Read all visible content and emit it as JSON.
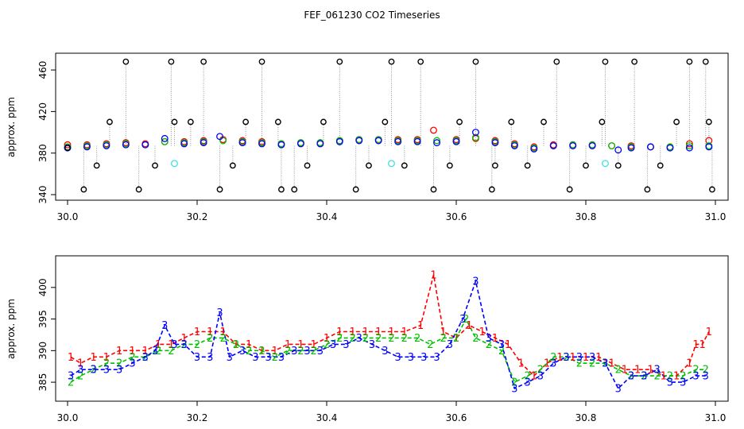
{
  "page": {
    "title": "FEF_061230  CO2 Timeseries"
  },
  "colors": {
    "series1": "#ff0000",
    "series2": "#00c000",
    "series3": "#0000ff",
    "flagged": "#000000",
    "highlight": "#40e0e0",
    "dropline": "#999999"
  },
  "chart_data": [
    {
      "type": "scatter",
      "title": "",
      "xlabel": "",
      "ylabel": "approx. ppm",
      "xlim": [
        30.0,
        31.0
      ],
      "ylim": [
        340,
        470
      ],
      "xticks": [
        "30.0",
        "30.2",
        "30.4",
        "30.6",
        "30.8",
        "31.0"
      ],
      "xtick_values": [
        30.0,
        30.2,
        30.4,
        30.6,
        30.8,
        31.0
      ],
      "yticks": [
        "340",
        "380",
        "420",
        "460"
      ],
      "ytick_values": [
        340,
        380,
        420,
        460
      ],
      "grid": false,
      "notes": "Symbols: open circles. Red/green/blue = samples 1/2/3 of cycle; black circles = flagged outliers (at 345, 368, 410, 468 ppm) with dotted drop lines; cyan = highlighted points.",
      "series": [
        {
          "name": "",
          "color_key": "series1",
          "x": [
            30.0,
            30.03,
            30.06,
            30.09,
            30.12,
            30.15,
            30.18,
            30.21,
            30.24,
            30.27,
            30.3,
            30.33,
            30.36,
            30.39,
            30.42,
            30.45,
            30.48,
            30.51,
            30.54,
            30.565,
            30.6,
            30.63,
            30.66,
            30.69,
            30.72,
            30.75,
            30.78,
            30.81,
            30.84,
            30.87,
            30.9,
            30.93,
            30.96,
            30.99
          ],
          "y": [
            388,
            388,
            389,
            390,
            389,
            391,
            391,
            392,
            393,
            392,
            391,
            389,
            390,
            390,
            392,
            393,
            393,
            393,
            393,
            402,
            393,
            394,
            392,
            389,
            386,
            388,
            388,
            388,
            387,
            387,
            386,
            386,
            389,
            392
          ]
        },
        {
          "name": "",
          "color_key": "series2",
          "x": [
            30.0,
            30.03,
            30.06,
            30.09,
            30.12,
            30.15,
            30.18,
            30.21,
            30.24,
            30.27,
            30.3,
            30.33,
            30.36,
            30.39,
            30.42,
            30.45,
            30.48,
            30.51,
            30.54,
            30.57,
            30.6,
            30.63,
            30.66,
            30.69,
            30.72,
            30.75,
            30.78,
            30.81,
            30.84,
            30.87,
            30.9,
            30.93,
            30.96,
            30.99
          ],
          "y": [
            386,
            387,
            388,
            389,
            388,
            391,
            390,
            391,
            392,
            391,
            390,
            389,
            390,
            390,
            392,
            393,
            393,
            392,
            392,
            392,
            392,
            395,
            391,
            388,
            385,
            387,
            388,
            388,
            387,
            386,
            386,
            386,
            387,
            387
          ]
        },
        {
          "name": "",
          "color_key": "series3",
          "x": [
            30.0,
            30.03,
            30.06,
            30.09,
            30.12,
            30.15,
            30.18,
            30.21,
            30.235,
            30.27,
            30.3,
            30.33,
            30.36,
            30.39,
            30.42,
            30.45,
            30.48,
            30.51,
            30.54,
            30.57,
            30.6,
            30.63,
            30.66,
            30.69,
            30.72,
            30.75,
            30.78,
            30.81,
            30.85,
            30.87,
            30.9,
            30.93,
            30.96,
            30.99
          ],
          "y": [
            385,
            386,
            387,
            388,
            388,
            394,
            389,
            390,
            396,
            390,
            389,
            388,
            389,
            389,
            391,
            392,
            392,
            391,
            391,
            390,
            391,
            400,
            390,
            387,
            384,
            387,
            387,
            387,
            383,
            385,
            386,
            385,
            385,
            386
          ]
        },
        {
          "name": "",
          "color_key": "flagged",
          "x": [
            30.0,
            30.025,
            30.045,
            30.065,
            30.09,
            30.11,
            30.135,
            30.16,
            30.165,
            30.19,
            30.21,
            30.235,
            30.255,
            30.275,
            30.3,
            30.325,
            30.33,
            30.35,
            30.37,
            30.395,
            30.42,
            30.445,
            30.465,
            30.49,
            30.5,
            30.52,
            30.545,
            30.565,
            30.59,
            30.605,
            30.63,
            30.655,
            30.66,
            30.685,
            30.71,
            30.735,
            30.755,
            30.775,
            30.8,
            30.825,
            30.83,
            30.85,
            30.875,
            30.895,
            30.915,
            30.94,
            30.96,
            30.985,
            30.99,
            30.995
          ],
          "y": [
            385,
            345,
            368,
            410,
            468,
            345,
            368,
            468,
            410,
            410,
            468,
            345,
            368,
            410,
            468,
            410,
            345,
            345,
            368,
            410,
            468,
            345,
            368,
            410,
            468,
            368,
            468,
            345,
            368,
            410,
            468,
            345,
            368,
            410,
            368,
            410,
            468,
            345,
            368,
            410,
            468,
            368,
            468,
            345,
            368,
            410,
            468,
            468,
            410,
            345
          ]
        },
        {
          "name": "",
          "color_key": "highlight",
          "x": [
            30.165,
            30.5,
            30.83
          ],
          "y": [
            370,
            370,
            370
          ]
        }
      ]
    },
    {
      "type": "line",
      "title": "",
      "xlabel": "",
      "ylabel": "approx. ppm",
      "xlim": [
        30.0,
        31.0
      ],
      "ylim": [
        383,
        404
      ],
      "xticks": [
        "30.0",
        "30.2",
        "30.4",
        "30.6",
        "30.8",
        "31.0"
      ],
      "xtick_values": [
        30.0,
        30.2,
        30.4,
        30.6,
        30.8,
        31.0
      ],
      "yticks": [
        "385",
        "390",
        "395",
        "400"
      ],
      "ytick_values": [
        385,
        390,
        395,
        400
      ],
      "grid": false,
      "notes": "Dashed lines with point labels '1', '2', '3' marking sample number.",
      "series": [
        {
          "name": "",
          "label": "1",
          "color_key": "series1",
          "x": [
            30.005,
            30.02,
            30.04,
            30.06,
            30.08,
            30.1,
            30.12,
            30.14,
            30.16,
            30.18,
            30.2,
            30.22,
            30.24,
            30.26,
            30.28,
            30.3,
            30.32,
            30.34,
            30.36,
            30.38,
            30.4,
            30.42,
            30.44,
            30.46,
            30.48,
            30.5,
            30.52,
            30.545,
            30.565,
            30.58,
            30.6,
            30.62,
            30.64,
            30.66,
            30.68,
            30.7,
            30.72,
            30.74,
            30.76,
            30.78,
            30.8,
            30.82,
            30.84,
            30.86,
            30.88,
            30.9,
            30.92,
            30.94,
            30.96,
            30.97,
            30.98,
            30.99
          ],
          "y": [
            389,
            388,
            389,
            389,
            390,
            390,
            390,
            391,
            391,
            392,
            393,
            393,
            393,
            391,
            391,
            390,
            390,
            391,
            391,
            391,
            392,
            393,
            393,
            393,
            393,
            393,
            393,
            394,
            402,
            393,
            392,
            394,
            393,
            392,
            391,
            388,
            386,
            388,
            389,
            389,
            389,
            389,
            388,
            387,
            387,
            387,
            386,
            386,
            388,
            391,
            391,
            393
          ]
        },
        {
          "name": "",
          "label": "2",
          "color_key": "series2",
          "x": [
            30.005,
            30.02,
            30.04,
            30.06,
            30.08,
            30.1,
            30.12,
            30.14,
            30.16,
            30.18,
            30.2,
            30.22,
            30.24,
            30.26,
            30.28,
            30.3,
            30.32,
            30.34,
            30.36,
            30.38,
            30.4,
            30.42,
            30.44,
            30.46,
            30.48,
            30.5,
            30.52,
            30.54,
            30.56,
            30.58,
            30.6,
            30.615,
            30.63,
            30.65,
            30.67,
            30.69,
            30.71,
            30.73,
            30.75,
            30.77,
            30.79,
            30.81,
            30.83,
            30.85,
            30.87,
            30.89,
            30.91,
            30.93,
            30.95,
            30.97,
            30.985
          ],
          "y": [
            385,
            386,
            387,
            388,
            388,
            389,
            389,
            390,
            390,
            391,
            391,
            392,
            392,
            391,
            390,
            390,
            389,
            390,
            390,
            390,
            391,
            392,
            392,
            392,
            392,
            392,
            392,
            392,
            391,
            392,
            392,
            395,
            392,
            391,
            390,
            385,
            386,
            387,
            389,
            389,
            388,
            388,
            388,
            387,
            386,
            386,
            386,
            386,
            386,
            387,
            387
          ]
        },
        {
          "name": "",
          "label": "3",
          "color_key": "series3",
          "x": [
            30.005,
            30.02,
            30.04,
            30.06,
            30.08,
            30.1,
            30.12,
            30.135,
            30.15,
            30.165,
            30.18,
            30.2,
            30.22,
            30.235,
            30.25,
            30.27,
            30.29,
            30.31,
            30.33,
            30.35,
            30.37,
            30.39,
            30.41,
            30.43,
            30.45,
            30.47,
            30.49,
            30.51,
            30.53,
            30.55,
            30.57,
            30.59,
            30.61,
            30.63,
            30.65,
            30.67,
            30.69,
            30.71,
            30.73,
            30.75,
            30.77,
            30.79,
            30.81,
            30.83,
            30.85,
            30.87,
            30.89,
            30.91,
            30.93,
            30.95,
            30.97,
            30.985
          ],
          "y": [
            386,
            387,
            387,
            387,
            387,
            388,
            389,
            390,
            394,
            391,
            391,
            389,
            389,
            396,
            389,
            390,
            389,
            389,
            389,
            390,
            390,
            390,
            391,
            391,
            392,
            391,
            390,
            389,
            389,
            389,
            389,
            391,
            395,
            401,
            392,
            391,
            384,
            385,
            386,
            388,
            389,
            389,
            389,
            388,
            384,
            386,
            386,
            387,
            385,
            385,
            386,
            386
          ]
        }
      ]
    }
  ]
}
